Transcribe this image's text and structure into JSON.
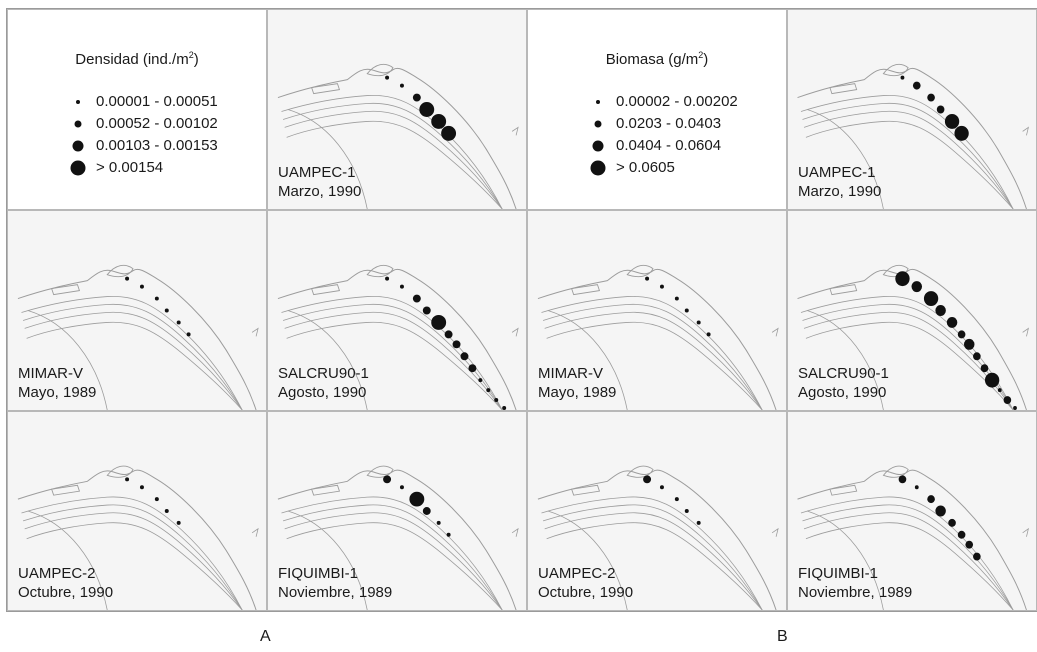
{
  "legends": {
    "A": {
      "title_text": "Densidad (ind./m",
      "title_sup": "2",
      "title_close": ")",
      "items": [
        "0.00001 - 0.00051",
        "0.00052 - 0.00102",
        "0.00103 - 0.00153",
        "> 0.00154"
      ]
    },
    "B": {
      "title_text": "Biomasa (g/m",
      "title_sup": "2",
      "title_close": ")",
      "items": [
        "0.00002 - 0.00202",
        "0.0203 - 0.0403",
        "0.0404 - 0.0604",
        "> 0.0605"
      ]
    }
  },
  "panels": {
    "A": [
      {
        "cruise": "UAMPEC-1",
        "date": "Marzo, 1990",
        "dots": [
          1,
          1,
          2,
          4,
          4,
          4
        ]
      },
      {
        "cruise": "MIMAR-V",
        "date": "Mayo, 1989",
        "dots": [
          1,
          1,
          1,
          1,
          1,
          1
        ]
      },
      {
        "cruise": "SALCRU90-1",
        "date": "Agosto, 1990",
        "dots": [
          1,
          1,
          2,
          2,
          4,
          2,
          2,
          2,
          2,
          1,
          1,
          1,
          1
        ]
      },
      {
        "cruise": "UAMPEC-2",
        "date": "Octubre, 1990",
        "dots": [
          1,
          1,
          1,
          1,
          1
        ]
      },
      {
        "cruise": "FIQUIMBI-1",
        "date": "Noviembre, 1989",
        "dots": [
          2,
          1,
          4,
          2,
          1,
          1
        ]
      }
    ],
    "B": [
      {
        "cruise": "UAMPEC-1",
        "date": "Marzo, 1990",
        "dots": [
          1,
          2,
          2,
          2,
          4,
          4
        ]
      },
      {
        "cruise": "MIMAR-V",
        "date": "Mayo, 1989",
        "dots": [
          1,
          1,
          1,
          1,
          1,
          1
        ]
      },
      {
        "cruise": "SALCRU90-1",
        "date": "Agosto, 1990",
        "dots": [
          4,
          3,
          4,
          3,
          3,
          2,
          3,
          2,
          2,
          4,
          1,
          2,
          1
        ]
      },
      {
        "cruise": "UAMPEC-2",
        "date": "Octubre, 1990",
        "dots": [
          2,
          1,
          1,
          1,
          1
        ]
      },
      {
        "cruise": "FIQUIMBI-1",
        "date": "Noviembre, 1989",
        "dots": [
          2,
          1,
          2,
          3,
          2,
          2,
          2,
          2
        ]
      }
    ]
  },
  "panel_letters": {
    "A": "A",
    "B": "B"
  },
  "colors": {
    "land": "#f5f5f5",
    "lines": "#9c9c9c",
    "dots": "#111111"
  }
}
